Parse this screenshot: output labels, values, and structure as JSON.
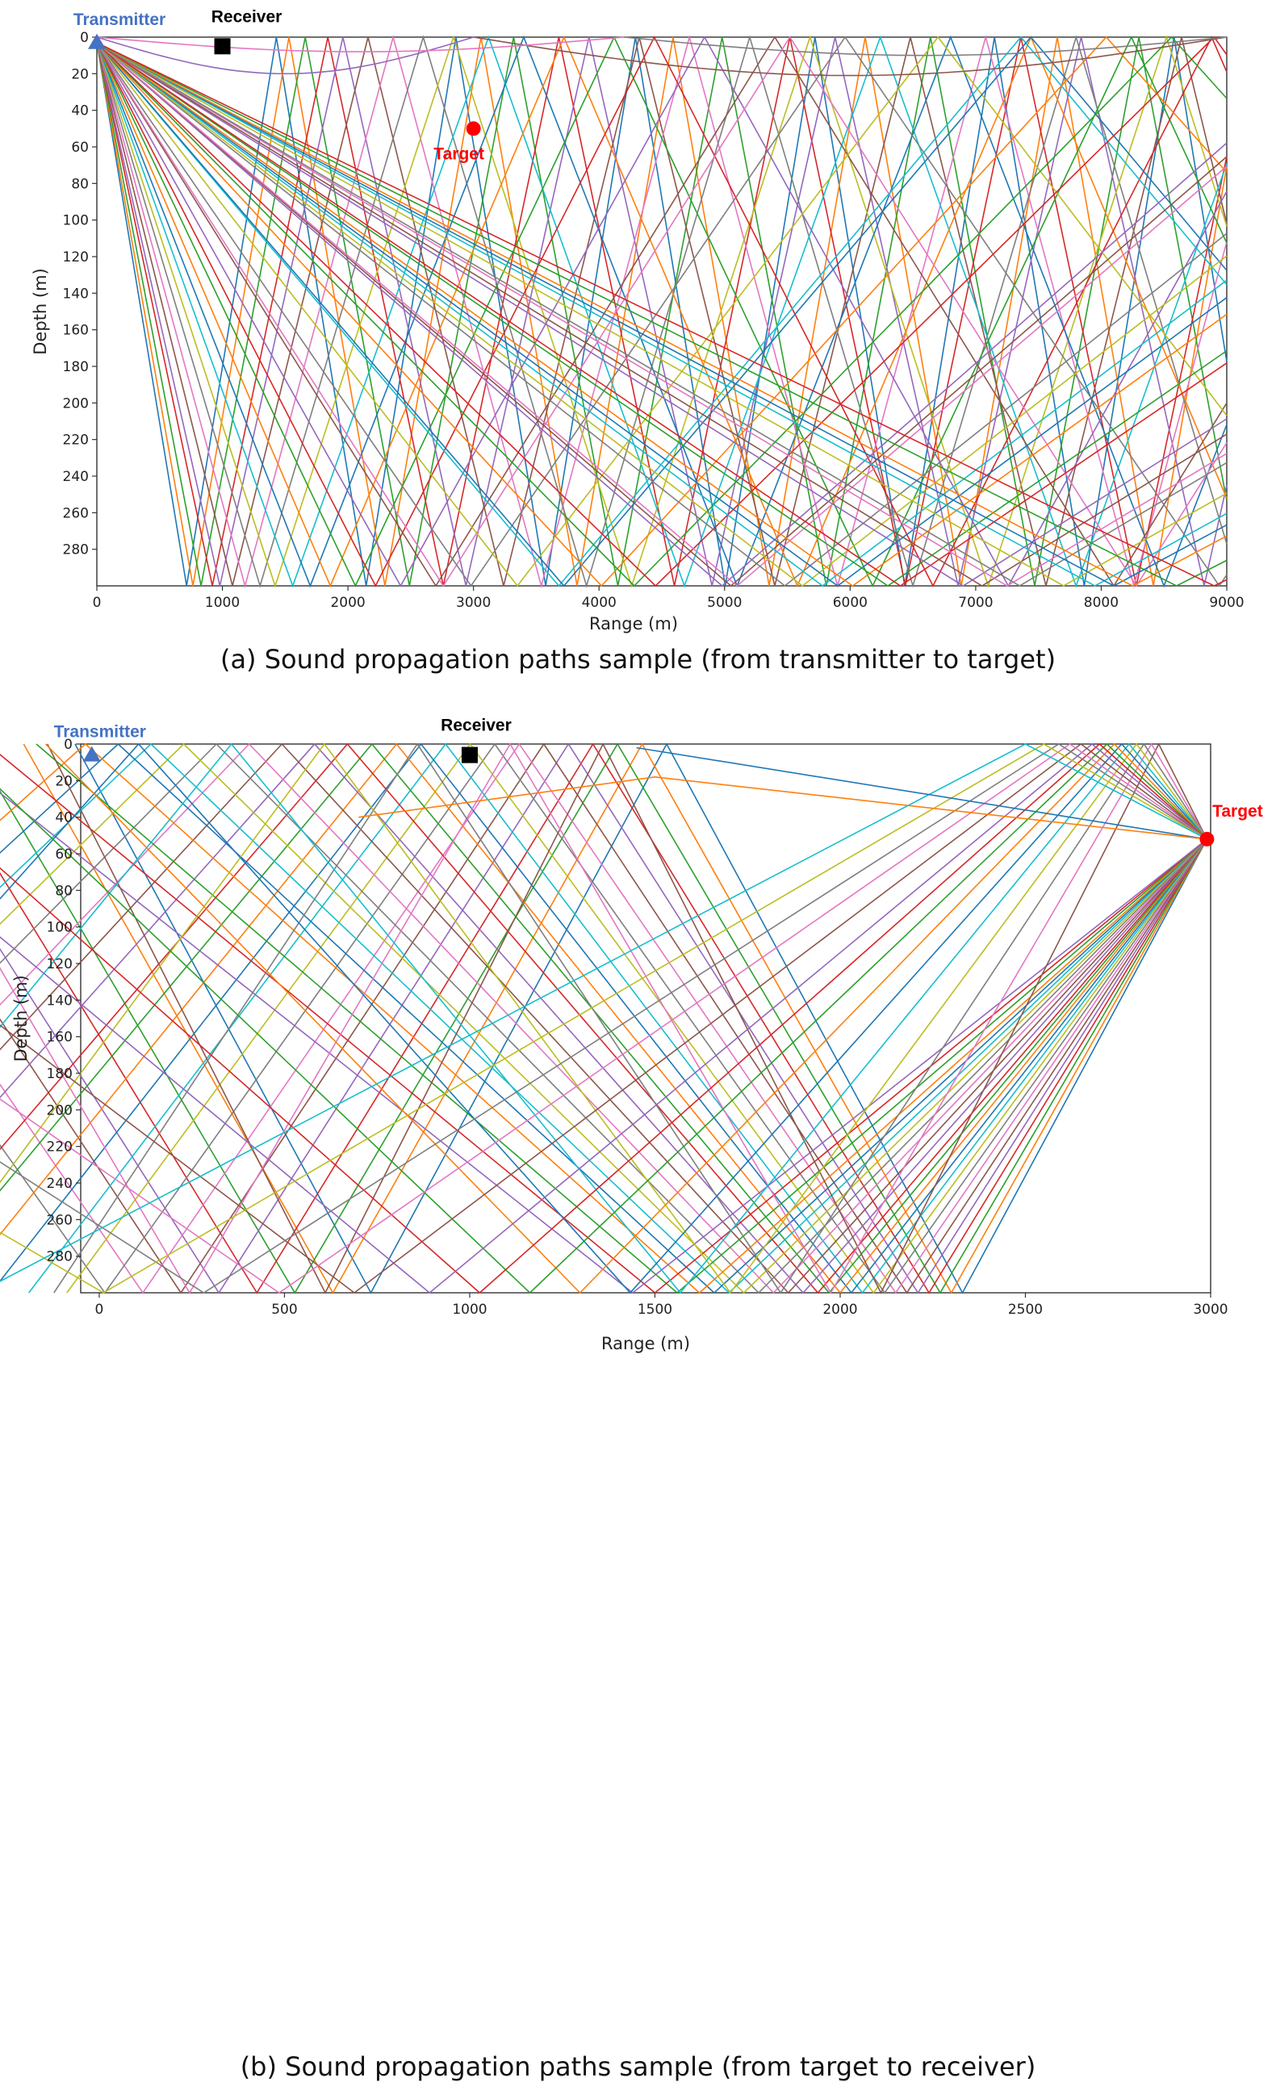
{
  "chart_data": [
    {
      "type": "line",
      "panel": "a",
      "caption": "(a) Sound propagation paths sample (from transmitter to target)",
      "xlabel": "Range (m)",
      "ylabel": "Depth (m)",
      "xlim": [
        0,
        9000
      ],
      "ylim": [
        300,
        0
      ],
      "xticks": [
        "0",
        "1000",
        "2000",
        "3000",
        "4000",
        "5000",
        "6000",
        "7000",
        "8000",
        "9000"
      ],
      "yticks": [
        "0",
        "20",
        "40",
        "60",
        "80",
        "100",
        "120",
        "140",
        "160",
        "180",
        "200",
        "220",
        "240",
        "260",
        "280"
      ],
      "grid": false,
      "markers": [
        {
          "label": "Transmitter",
          "x": 0,
          "y": 3,
          "shape": "triangle",
          "color": "#4472c4"
        },
        {
          "label": "Receiver",
          "x": 1000,
          "y": 5,
          "shape": "square",
          "color": "#000000"
        },
        {
          "label": "Target",
          "x": 3000,
          "y": 50,
          "shape": "circle",
          "color": "#ff0000"
        }
      ],
      "source": {
        "x": 0,
        "y": 3
      },
      "ray_group": "from-source",
      "bottom_turn_points": [
        715,
        765,
        830,
        920,
        980,
        1080,
        1180,
        1300,
        1420,
        1560,
        1700,
        1860,
        2060,
        2220,
        2420,
        2700,
        2760,
        2980,
        3350,
        3680,
        3720,
        4020,
        4280,
        4450,
        4980,
        5050,
        5100,
        5480,
        5620,
        5780,
        5900,
        6020,
        6300,
        6400,
        6900,
        7050,
        7250,
        7350,
        7700,
        7950,
        8100,
        8250,
        8600,
        8900
      ],
      "surface_arcs": [
        {
          "start": 0,
          "end": 3000,
          "max_depth": 20
        },
        {
          "start": 3000,
          "end": 9000,
          "max_depth": 21
        },
        {
          "start": 0,
          "end": 4200,
          "max_depth": 8
        },
        {
          "start": 4200,
          "end": 9000,
          "max_depth": 10
        }
      ]
    },
    {
      "type": "line",
      "panel": "b",
      "caption": "(b) Sound propagation paths sample (from target to receiver)",
      "xlabel": "Range (m)",
      "ylabel": "Depth (m)",
      "xlim": [
        -50,
        3000
      ],
      "ylim": [
        300,
        0
      ],
      "xticks": [
        "0",
        "500",
        "1000",
        "1500",
        "2000",
        "2500",
        "3000"
      ],
      "yticks": [
        "0",
        "20",
        "40",
        "60",
        "80",
        "100",
        "120",
        "140",
        "160",
        "180",
        "200",
        "220",
        "240",
        "260",
        "280"
      ],
      "grid": false,
      "markers": [
        {
          "label": "Transmitter",
          "x": -20,
          "y": 6,
          "shape": "triangle",
          "color": "#4472c4"
        },
        {
          "label": "Receiver",
          "x": 1000,
          "y": 6,
          "shape": "square",
          "color": "#000000"
        },
        {
          "label": "Target",
          "x": 2990,
          "y": 52,
          "shape": "circle",
          "color": "#ff0000"
        }
      ],
      "source": {
        "x": 2990,
        "y": 52
      },
      "ray_group": "from-target",
      "bottom_turn_points": [
        2330,
        2300,
        2270,
        2240,
        2210,
        2180,
        2150,
        2120,
        2090,
        2060,
        2030,
        2000,
        1970,
        1940,
        1900,
        1860,
        1820,
        1780,
        1740,
        1700,
        1660,
        1620,
        1560,
        1500,
        1440
      ],
      "surface_turn_points": [
        2860,
        2840,
        2820,
        2800,
        2780,
        2760,
        2740,
        2720,
        2700,
        2680,
        2650,
        2620,
        2590,
        2550,
        2500
      ],
      "direct_paths": [
        {
          "x": [
            1450,
            2990
          ],
          "y": [
            2,
            52
          ]
        },
        {
          "x": [
            700,
            1500,
            2990
          ],
          "y": [
            40,
            18,
            52
          ]
        }
      ]
    }
  ],
  "palette": [
    "#1f77b4",
    "#ff7f0e",
    "#2ca02c",
    "#d62728",
    "#9467bd",
    "#8c564b",
    "#e377c2",
    "#7f7f7f",
    "#bcbd22",
    "#17becf"
  ]
}
